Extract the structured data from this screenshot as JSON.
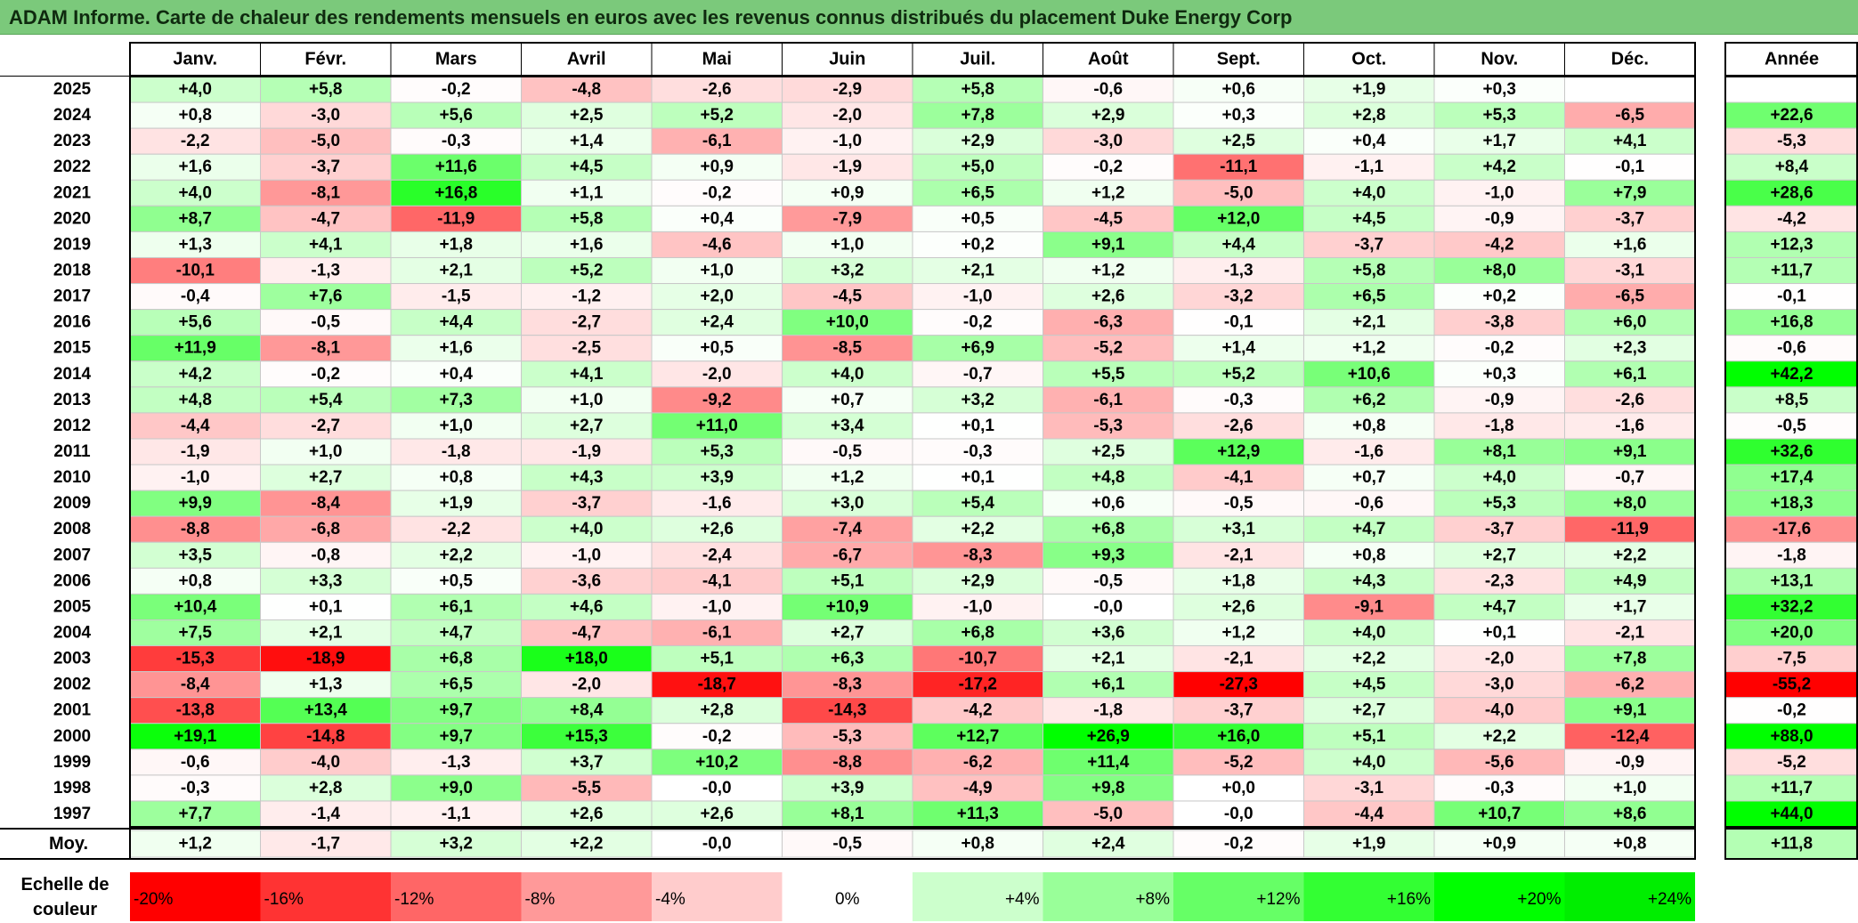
{
  "title": "ADAM Informe. Carte de chaleur des rendements mensuels en euros avec les revenus connus distribués du placement Duke Energy Corp",
  "chart_data": {
    "type": "heatmap",
    "title": "ADAM Informe. Carte de chaleur des rendements mensuels en euros avec les revenus connus distribués du placement Duke Energy Corp",
    "months": [
      "Janv.",
      "Févr.",
      "Mars",
      "Avril",
      "Mai",
      "Juin",
      "Juil.",
      "Août",
      "Sept.",
      "Oct.",
      "Nov.",
      "Déc."
    ],
    "year_header": "Année",
    "average_label": "Moy.",
    "rows": [
      {
        "year": "2025",
        "values": [
          "+4,0",
          "+5,8",
          "-0,2",
          "-4,8",
          "-2,6",
          "-2,9",
          "+5,8",
          "-0,6",
          "+0,6",
          "+1,9",
          "+0,3",
          ""
        ],
        "annual": ""
      },
      {
        "year": "2024",
        "values": [
          "+0,8",
          "-3,0",
          "+5,6",
          "+2,5",
          "+5,2",
          "-2,0",
          "+7,8",
          "+2,9",
          "+0,3",
          "+2,8",
          "+5,3",
          "-6,5"
        ],
        "annual": "+22,6"
      },
      {
        "year": "2023",
        "values": [
          "-2,2",
          "-5,0",
          "-0,3",
          "+1,4",
          "-6,1",
          "-1,0",
          "+2,9",
          "-3,0",
          "+2,5",
          "+0,4",
          "+1,7",
          "+4,1"
        ],
        "annual": "-5,3"
      },
      {
        "year": "2022",
        "values": [
          "+1,6",
          "-3,7",
          "+11,6",
          "+4,5",
          "+0,9",
          "-1,9",
          "+5,0",
          "-0,2",
          "-11,1",
          "-1,1",
          "+4,2",
          "-0,1"
        ],
        "annual": "+8,4"
      },
      {
        "year": "2021",
        "values": [
          "+4,0",
          "-8,1",
          "+16,8",
          "+1,1",
          "-0,2",
          "+0,9",
          "+6,5",
          "+1,2",
          "-5,0",
          "+4,0",
          "-1,0",
          "+7,9"
        ],
        "annual": "+28,6"
      },
      {
        "year": "2020",
        "values": [
          "+8,7",
          "-4,7",
          "-11,9",
          "+5,8",
          "+0,4",
          "-7,9",
          "+0,5",
          "-4,5",
          "+12,0",
          "+4,5",
          "-0,9",
          "-3,7"
        ],
        "annual": "-4,2"
      },
      {
        "year": "2019",
        "values": [
          "+1,3",
          "+4,1",
          "+1,8",
          "+1,6",
          "-4,6",
          "+1,0",
          "+0,2",
          "+9,1",
          "+4,4",
          "-3,7",
          "-4,2",
          "+1,6"
        ],
        "annual": "+12,3"
      },
      {
        "year": "2018",
        "values": [
          "-10,1",
          "-1,3",
          "+2,1",
          "+5,2",
          "+1,0",
          "+3,2",
          "+2,1",
          "+1,2",
          "-1,3",
          "+5,8",
          "+8,0",
          "-3,1"
        ],
        "annual": "+11,7"
      },
      {
        "year": "2017",
        "values": [
          "-0,4",
          "+7,6",
          "-1,5",
          "-1,2",
          "+2,0",
          "-4,5",
          "-1,0",
          "+2,6",
          "-3,2",
          "+6,5",
          "+0,2",
          "-6,5"
        ],
        "annual": "-0,1"
      },
      {
        "year": "2016",
        "values": [
          "+5,6",
          "-0,5",
          "+4,4",
          "-2,7",
          "+2,4",
          "+10,0",
          "-0,2",
          "-6,3",
          "-0,1",
          "+2,1",
          "-3,8",
          "+6,0"
        ],
        "annual": "+16,8"
      },
      {
        "year": "2015",
        "values": [
          "+11,9",
          "-8,1",
          "+1,6",
          "-2,5",
          "+0,5",
          "-8,5",
          "+6,9",
          "-5,2",
          "+1,4",
          "+1,2",
          "-0,2",
          "+2,3"
        ],
        "annual": "-0,6"
      },
      {
        "year": "2014",
        "values": [
          "+4,2",
          "-0,2",
          "+0,4",
          "+4,1",
          "-2,0",
          "+4,0",
          "-0,7",
          "+5,5",
          "+5,2",
          "+10,6",
          "+0,3",
          "+6,1"
        ],
        "annual": "+42,2"
      },
      {
        "year": "2013",
        "values": [
          "+4,8",
          "+5,4",
          "+7,3",
          "+1,0",
          "-9,2",
          "+0,7",
          "+3,2",
          "-6,1",
          "-0,3",
          "+6,2",
          "-0,9",
          "-2,6"
        ],
        "annual": "+8,5"
      },
      {
        "year": "2012",
        "values": [
          "-4,4",
          "-2,7",
          "+1,0",
          "+2,7",
          "+11,0",
          "+3,4",
          "+0,1",
          "-5,3",
          "-2,6",
          "+0,8",
          "-1,8",
          "-1,6"
        ],
        "annual": "-0,5"
      },
      {
        "year": "2011",
        "values": [
          "-1,9",
          "+1,0",
          "-1,8",
          "-1,9",
          "+5,3",
          "-0,5",
          "-0,3",
          "+2,5",
          "+12,9",
          "-1,6",
          "+8,1",
          "+9,1"
        ],
        "annual": "+32,6"
      },
      {
        "year": "2010",
        "values": [
          "-1,0",
          "+2,7",
          "+0,8",
          "+4,3",
          "+3,9",
          "+1,2",
          "+0,1",
          "+4,8",
          "-4,1",
          "+0,7",
          "+4,0",
          "-0,7"
        ],
        "annual": "+17,4"
      },
      {
        "year": "2009",
        "values": [
          "+9,9",
          "-8,4",
          "+1,9",
          "-3,7",
          "-1,6",
          "+3,0",
          "+5,4",
          "+0,6",
          "-0,5",
          "-0,6",
          "+5,3",
          "+8,0"
        ],
        "annual": "+18,3"
      },
      {
        "year": "2008",
        "values": [
          "-8,8",
          "-6,8",
          "-2,2",
          "+4,0",
          "+2,6",
          "-7,4",
          "+2,2",
          "+6,8",
          "+3,1",
          "+4,7",
          "-3,7",
          "-11,9"
        ],
        "annual": "-17,6"
      },
      {
        "year": "2007",
        "values": [
          "+3,5",
          "-0,8",
          "+2,2",
          "-1,0",
          "-2,4",
          "-6,7",
          "-8,3",
          "+9,3",
          "-2,1",
          "+0,8",
          "+2,7",
          "+2,2"
        ],
        "annual": "-1,8"
      },
      {
        "year": "2006",
        "values": [
          "+0,8",
          "+3,3",
          "+0,5",
          "-3,6",
          "-4,1",
          "+5,1",
          "+2,9",
          "-0,5",
          "+1,8",
          "+4,3",
          "-2,3",
          "+4,9"
        ],
        "annual": "+13,1"
      },
      {
        "year": "2005",
        "values": [
          "+10,4",
          "+0,1",
          "+6,1",
          "+4,6",
          "-1,0",
          "+10,9",
          "-1,0",
          "-0,0",
          "+2,6",
          "-9,1",
          "+4,7",
          "+1,7"
        ],
        "annual": "+32,2"
      },
      {
        "year": "2004",
        "values": [
          "+7,5",
          "+2,1",
          "+4,7",
          "-4,7",
          "-6,1",
          "+2,7",
          "+6,8",
          "+3,6",
          "+1,2",
          "+4,0",
          "+0,1",
          "-2,1"
        ],
        "annual": "+20,0"
      },
      {
        "year": "2003",
        "values": [
          "-15,3",
          "-18,9",
          "+6,8",
          "+18,0",
          "+5,1",
          "+6,3",
          "-10,7",
          "+2,1",
          "-2,1",
          "+2,2",
          "-2,0",
          "+7,8"
        ],
        "annual": "-7,5"
      },
      {
        "year": "2002",
        "values": [
          "-8,4",
          "+1,3",
          "+6,5",
          "-2,0",
          "-18,7",
          "-8,3",
          "-17,2",
          "+6,1",
          "-27,3",
          "+4,5",
          "-3,0",
          "-6,2"
        ],
        "annual": "-55,2"
      },
      {
        "year": "2001",
        "values": [
          "-13,8",
          "+13,4",
          "+9,7",
          "+8,4",
          "+2,8",
          "-14,3",
          "-4,2",
          "-1,8",
          "-3,7",
          "+2,7",
          "-4,0",
          "+9,1"
        ],
        "annual": "-0,2"
      },
      {
        "year": "2000",
        "values": [
          "+19,1",
          "-14,8",
          "+9,7",
          "+15,3",
          "-0,2",
          "-5,3",
          "+12,7",
          "+26,9",
          "+16,0",
          "+5,1",
          "+2,2",
          "-12,4"
        ],
        "annual": "+88,0"
      },
      {
        "year": "1999",
        "values": [
          "-0,6",
          "-4,0",
          "-1,3",
          "+3,7",
          "+10,2",
          "-8,8",
          "-6,2",
          "+11,4",
          "-5,2",
          "+4,0",
          "-5,6",
          "-0,9"
        ],
        "annual": "-5,2"
      },
      {
        "year": "1998",
        "values": [
          "-0,3",
          "+2,8",
          "+9,0",
          "-5,5",
          "-0,0",
          "+3,9",
          "-4,9",
          "+9,8",
          "+0,0",
          "-3,1",
          "-0,3",
          "+1,0"
        ],
        "annual": "+11,7"
      },
      {
        "year": "1997",
        "values": [
          "+7,7",
          "-1,4",
          "-1,1",
          "+2,6",
          "+2,6",
          "+8,1",
          "+11,3",
          "-5,0",
          "-0,0",
          "-4,4",
          "+10,7",
          "+8,6"
        ],
        "annual": "+44,0"
      }
    ],
    "average": {
      "values": [
        "+1,2",
        "-1,7",
        "+3,2",
        "+2,2",
        "-0,0",
        "-0,5",
        "+0,8",
        "+2,4",
        "-0,2",
        "+1,9",
        "+0,9",
        "+0,8"
      ],
      "annual": "+11,8"
    },
    "scale": {
      "label_line1": "Echelle de",
      "label_line2": "couleur",
      "stops": [
        {
          "label": "-20%",
          "value": -20,
          "color": "#ff0000"
        },
        {
          "label": "-16%",
          "value": -16,
          "color": "#ff3333"
        },
        {
          "label": "-12%",
          "value": -12,
          "color": "#ff6666"
        },
        {
          "label": "-8%",
          "value": -8,
          "color": "#ff9999"
        },
        {
          "label": "-4%",
          "value": -4,
          "color": "#ffcccc"
        },
        {
          "label": "0%",
          "value": 0,
          "color": "#ffffff"
        },
        {
          "label": "+4%",
          "value": 4,
          "color": "#ccffcc"
        },
        {
          "label": "+8%",
          "value": 8,
          "color": "#99ff99"
        },
        {
          "label": "+12%",
          "value": 12,
          "color": "#66ff66"
        },
        {
          "label": "+16%",
          "value": 16,
          "color": "#33ff33"
        },
        {
          "label": "+20%",
          "value": 20,
          "color": "#00ff00"
        },
        {
          "label": "+24%",
          "value": 24,
          "color": "#00ee00"
        }
      ]
    },
    "title_bar_color": "#7bc97b"
  }
}
